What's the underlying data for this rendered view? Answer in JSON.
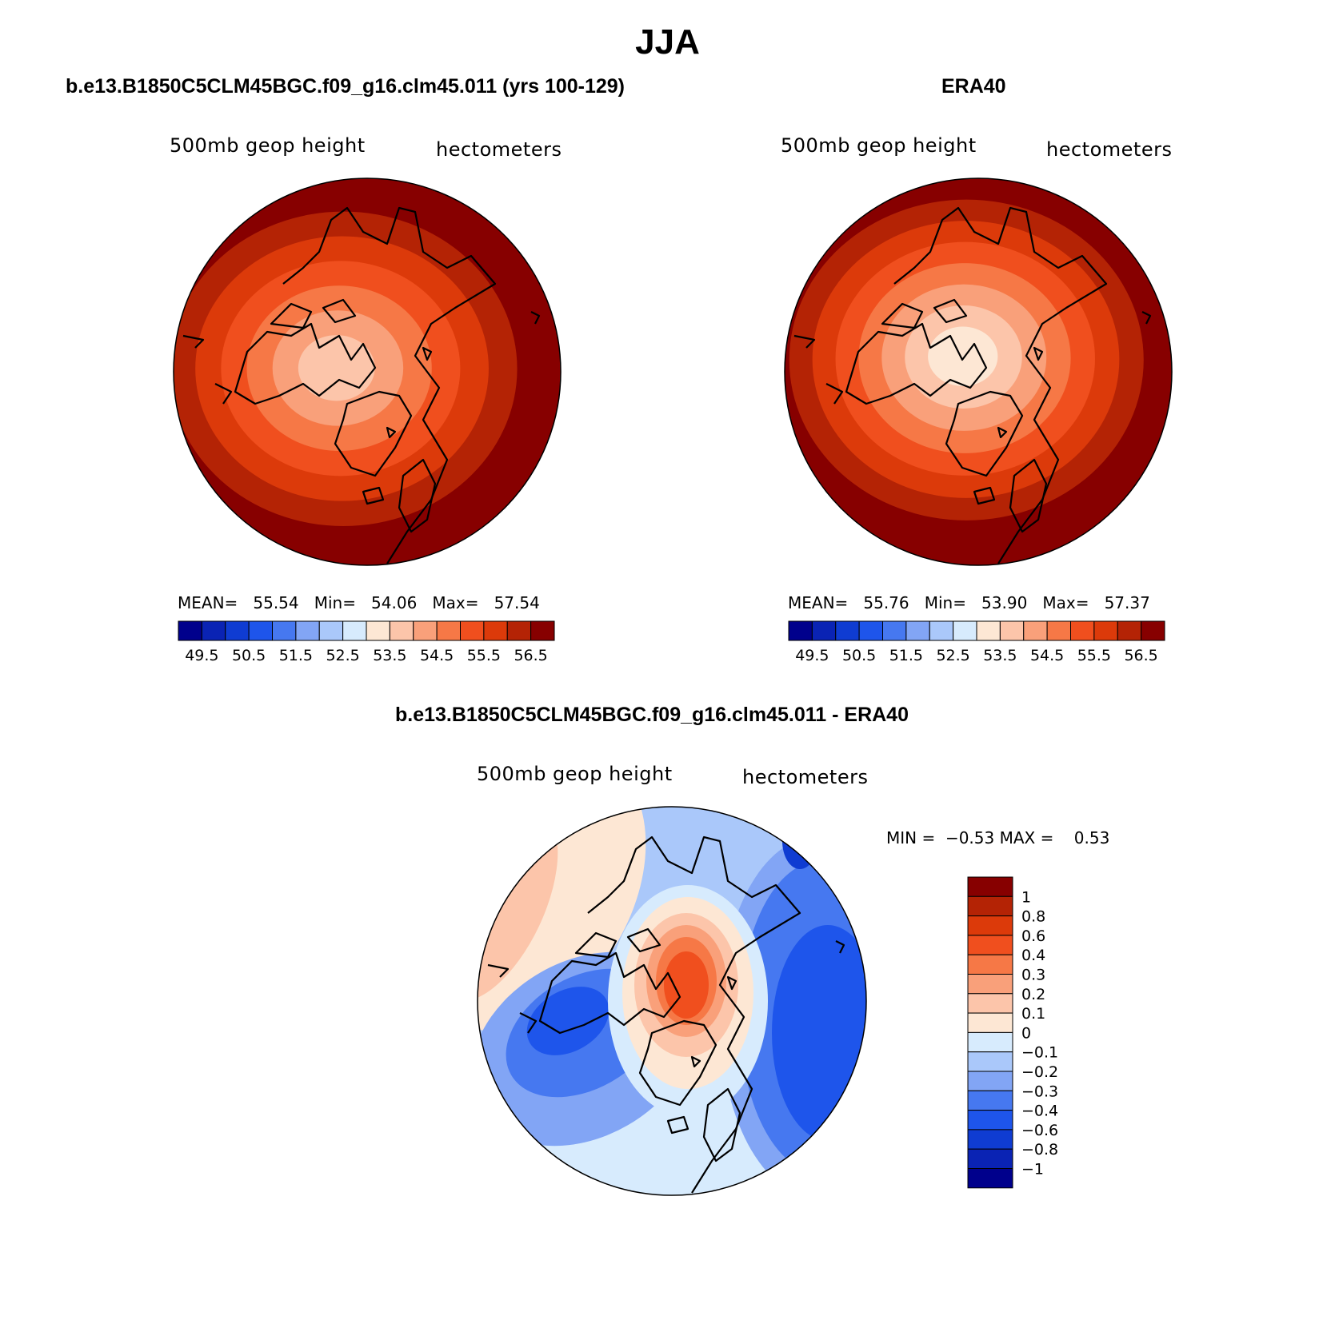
{
  "title": "JJA",
  "panels": [
    {
      "id": "model",
      "title": "b.e13.B1850C5CLM45BGC.f09_g16.clm45.011 (yrs 100-129)",
      "variable": "500mb geop height",
      "units": "hectometers",
      "stats": {
        "mean_label": "MEAN=",
        "mean": "55.54",
        "min_label": "Min=",
        "min": "54.06",
        "max_label": "Max=",
        "max": "57.54"
      }
    },
    {
      "id": "obs",
      "title": "ERA40",
      "variable": "500mb geop height",
      "units": "hectometers",
      "stats": {
        "mean_label": "MEAN=",
        "mean": "55.76",
        "min_label": "Min=",
        "min": "53.90",
        "max_label": "Max=",
        "max": "57.37"
      }
    }
  ],
  "abs_colorbar": {
    "labels": [
      "49.5",
      "50.5",
      "51.5",
      "52.5",
      "53.5",
      "54.5",
      "55.5",
      "56.5"
    ],
    "colors": [
      "#00008c",
      "#0a23b4",
      "#0f3cd2",
      "#1e55eb",
      "#4678f0",
      "#82a5f5",
      "#aac8fa",
      "#d7ebfd",
      "#fde7d4",
      "#fcc5aa",
      "#f9a07a",
      "#f67846",
      "#f04f1e",
      "#dc3a0a",
      "#b42305",
      "#870000"
    ]
  },
  "diff_panel": {
    "title": "b.e13.B1850C5CLM45BGC.f09_g16.clm45.011 - ERA40",
    "variable": "500mb geop height",
    "units": "hectometers",
    "stats_text": "MIN =  −0.53 MAX =    0.53",
    "colorbar": {
      "labels": [
        "1",
        "0.8",
        "0.6",
        "0.4",
        "0.3",
        "0.2",
        "0.1",
        "0",
        "−0.1",
        "−0.2",
        "−0.3",
        "−0.4",
        "−0.6",
        "−0.8",
        "−1"
      ],
      "colors": [
        "#870000",
        "#b42305",
        "#dc3a0a",
        "#f04f1e",
        "#f67846",
        "#f9a07a",
        "#fcc5aa",
        "#fde7d4",
        "#d7ebfd",
        "#aac8fa",
        "#82a5f5",
        "#4678f0",
        "#1e55eb",
        "#0f3cd2",
        "#0a23b4",
        "#00008c"
      ]
    }
  },
  "map_colors": {
    "model": [
      "#870000",
      "#b42305",
      "#dc3a0a",
      "#f04f1e",
      "#f67846",
      "#f9a07a",
      "#fcc5aa"
    ],
    "obs": [
      "#870000",
      "#b42305",
      "#dc3a0a",
      "#f04f1e",
      "#f67846",
      "#f9a07a",
      "#fcc5aa",
      "#fde7d4"
    ],
    "diff_neg": [
      "#d7ebfd",
      "#aac8fa",
      "#82a5f5",
      "#4678f0",
      "#1e55eb",
      "#0f3cd2"
    ],
    "diff_pos": [
      "#fde7d4",
      "#fcc5aa",
      "#f9a07a",
      "#f67846",
      "#f04f1e"
    ]
  }
}
